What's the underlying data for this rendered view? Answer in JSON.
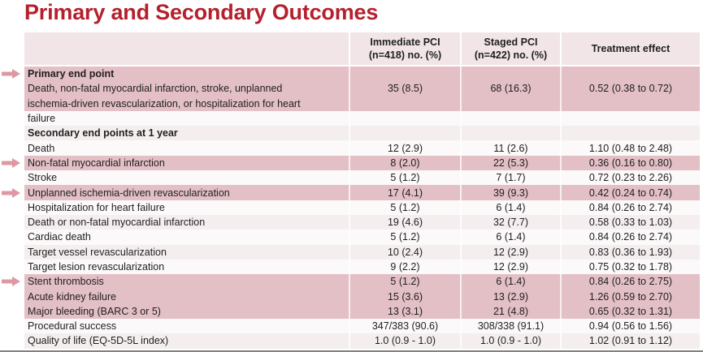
{
  "page": {
    "title": "Primary and Secondary Outcomes",
    "title_color": "#b5202d",
    "highlight_color": "#e3bfc6",
    "header_bg_color": "#f2e5e7",
    "arrow_color": "#dd98a3"
  },
  "table": {
    "columns": {
      "immediate_pci": {
        "line1": "Immediate PCI",
        "line2": "(n=418)   no. (%)"
      },
      "staged_pci": {
        "line1": "Staged PCI",
        "line2": "(n=422)   no. (%)"
      },
      "treatment_effect": {
        "line1": "Treatment effect",
        "line2": ""
      }
    },
    "rows": [
      {
        "label": "Primary end point",
        "bold": true,
        "c1": "",
        "c2": "",
        "c3": "",
        "highlight": true,
        "arrow": true
      },
      {
        "label": "Death, non-fatal myocardial infarction, stroke, unplanned",
        "bold": false,
        "c1": "35 (8.5)",
        "c2": "68 (16.3)",
        "c3": "0.52 (0.38 to 0.72)",
        "highlight": true,
        "arrow": false
      },
      {
        "label": "ischemia-driven revascularization, or hospitalization for heart",
        "bold": false,
        "c1": "",
        "c2": "",
        "c3": "",
        "highlight": true,
        "arrow": false
      },
      {
        "label": "failure",
        "bold": false,
        "c1": "",
        "c2": "",
        "c3": "",
        "highlight": false,
        "arrow": false
      },
      {
        "label": "Secondary end points at 1 year",
        "bold": true,
        "c1": "",
        "c2": "",
        "c3": "",
        "highlight": false,
        "arrow": false
      },
      {
        "label": "Death",
        "bold": false,
        "c1": "12 (2.9)",
        "c2": "11 (2.6)",
        "c3": "1.10 (0.48 to 2.48)",
        "highlight": false,
        "arrow": false
      },
      {
        "label": "Non-fatal myocardial infarction",
        "bold": false,
        "c1": "8 (2.0)",
        "c2": "22 (5.3)",
        "c3": "0.36 (0.16 to 0.80)",
        "highlight": true,
        "arrow": true
      },
      {
        "label": "Stroke",
        "bold": false,
        "c1": "5 (1.2)",
        "c2": "7 (1.7)",
        "c3": "0.72 (0.23 to 2.26)",
        "highlight": false,
        "arrow": false
      },
      {
        "label": "Unplanned ischemia-driven revascularization",
        "bold": false,
        "c1": "17 (4.1)",
        "c2": "39 (9.3)",
        "c3": "0.42 (0.24 to 0.74)",
        "highlight": true,
        "arrow": true
      },
      {
        "label": "Hospitalization for heart failure",
        "bold": false,
        "c1": "5 (1.2)",
        "c2": "6 (1.4)",
        "c3": "0.84 (0.26 to 2.74)",
        "highlight": false,
        "arrow": false
      },
      {
        "label": "Death or non-fatal myocardial infarction",
        "bold": false,
        "c1": "19 (4.6)",
        "c2": "32 (7.7)",
        "c3": "0.58 (0.33 to 1.03)",
        "highlight": false,
        "arrow": false
      },
      {
        "label": "Cardiac death",
        "bold": false,
        "c1": "5 (1.2)",
        "c2": "6 (1.4)",
        "c3": "0.84 (0.26 to 2.74)",
        "highlight": false,
        "arrow": false
      },
      {
        "label": "Target vessel revascularization",
        "bold": false,
        "c1": "10 (2.4)",
        "c2": "12 (2.9)",
        "c3": "0.83 (0.36 to 1.93)",
        "highlight": false,
        "arrow": false
      },
      {
        "label": "Target lesion revascularization",
        "bold": false,
        "c1": "9 (2.2)",
        "c2": "12 (2.9)",
        "c3": "0.75 (0.32 to 1.78)",
        "highlight": false,
        "arrow": false
      },
      {
        "label": "Stent thrombosis",
        "bold": false,
        "c1": "5 (1.2)",
        "c2": "6 (1.4)",
        "c3": "0.84 (0.26 to 2.75)",
        "highlight": true,
        "arrow": true
      },
      {
        "label": "Acute kidney failure",
        "bold": false,
        "c1": "15 (3.6)",
        "c2": "13 (2.9)",
        "c3": "1.26 (0.59 to 2.70)",
        "highlight": true,
        "arrow": false
      },
      {
        "label": "Major bleeding (BARC 3 or 5)",
        "bold": false,
        "c1": "13 (3.1)",
        "c2": "21 (4.8)",
        "c3": "0.65 (0.32 to 1.31)",
        "highlight": true,
        "arrow": false
      },
      {
        "label": "Procedural success",
        "bold": false,
        "c1": "347/383 (90.6)",
        "c2": "308/338 (91.1)",
        "c3": "0.94 (0.56 to 1.56)",
        "highlight": false,
        "arrow": false
      },
      {
        "label": "Quality of life (EQ-5D-5L index)",
        "bold": false,
        "c1": "1.0 (0.9 - 1.0)",
        "c2": "1.0 (0.9 - 1.0)",
        "c3": "1.02 (0.91 to 1.12)",
        "highlight": false,
        "arrow": false
      }
    ]
  }
}
